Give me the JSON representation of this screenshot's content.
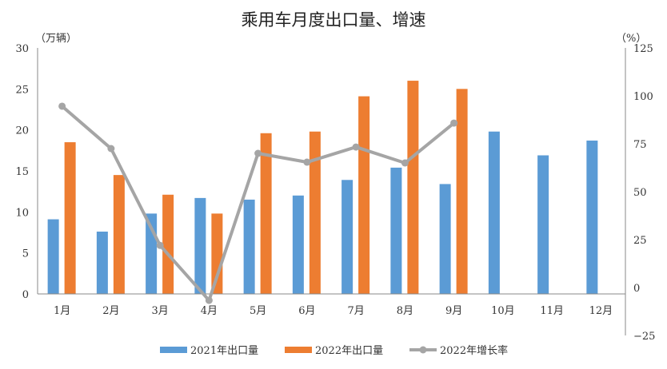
{
  "chart_data": {
    "type": "bar",
    "title": "乘用车月度出口量、增速",
    "ylabel": "（万辆）",
    "y2label": "（%）",
    "ylim": [
      0,
      30
    ],
    "y2lim": [
      -25,
      125
    ],
    "yticks": [
      "0",
      "5",
      "10",
      "15",
      "20",
      "25",
      "30"
    ],
    "y2ticks": [
      "-25",
      "0",
      "25",
      "50",
      "75",
      "100",
      "125"
    ],
    "categories": [
      "1月",
      "2月",
      "3月",
      "4月",
      "5月",
      "6月",
      "7月",
      "8月",
      "9月",
      "10月",
      "11月",
      "12月"
    ],
    "series": [
      {
        "name": "2021年出口量",
        "type": "bar",
        "axis": "left",
        "color": "#5B9BD5",
        "values": [
          9.1,
          7.6,
          9.8,
          11.7,
          11.5,
          12.0,
          13.9,
          15.4,
          13.4,
          19.8,
          16.9,
          18.7
        ]
      },
      {
        "name": "2022年出口量",
        "type": "bar",
        "axis": "left",
        "color": "#ED7D31",
        "values": [
          18.5,
          14.5,
          12.1,
          9.8,
          19.6,
          19.8,
          24.1,
          26.0,
          25.0,
          null,
          null,
          null
        ]
      },
      {
        "name": "2022年增长率",
        "type": "line",
        "axis": "right",
        "color": "#A5A5A5",
        "values": [
          94.6,
          72.5,
          22.0,
          -6.7,
          70.0,
          65.4,
          73.3,
          65.0,
          85.8,
          null,
          null,
          null
        ]
      }
    ],
    "negative_tick_color": "#FF0000",
    "legend_position": "bottom",
    "grid": false
  }
}
